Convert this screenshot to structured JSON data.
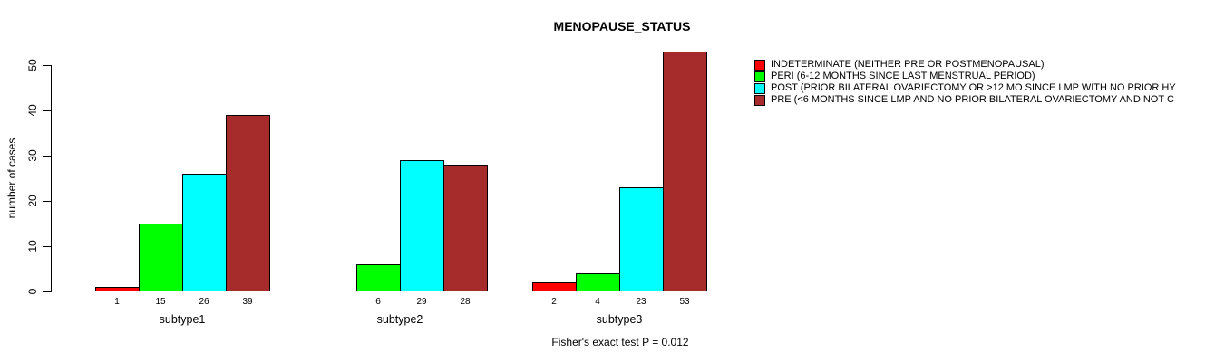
{
  "chart_data": {
    "type": "bar",
    "title": "MENOPAUSE_STATUS",
    "xlabel": "",
    "ylabel": "number of cases",
    "ylim": [
      0,
      50
    ],
    "yticks": [
      0,
      10,
      20,
      30,
      40,
      50
    ],
    "grid": false,
    "legend_position": "right",
    "categories": [
      "subtype1",
      "subtype2",
      "subtype3"
    ],
    "series": [
      {
        "name": "INDETERMINATE (NEITHER PRE OR POSTMENOPAUSAL)",
        "color": "#ff0000",
        "values": [
          1,
          0,
          2
        ]
      },
      {
        "name": "PERI (6-12 MONTHS SINCE LAST MENSTRUAL PERIOD)",
        "color": "#00ff00",
        "values": [
          15,
          6,
          4
        ]
      },
      {
        "name": "POST (PRIOR BILATERAL OVARIECTOMY OR >12 MO SINCE LMP WITH NO PRIOR HY",
        "color": "#00ffff",
        "values": [
          26,
          29,
          23
        ]
      },
      {
        "name": "PRE (<6 MONTHS SINCE LMP AND NO PRIOR BILATERAL OVARIECTOMY AND NOT C",
        "color": "#a62b2b",
        "values": [
          39,
          28,
          53
        ]
      }
    ],
    "bar_labels_by_group": [
      [
        "1",
        "15",
        "26",
        "39"
      ],
      [
        "",
        "6",
        "29",
        "28"
      ],
      [
        "2",
        "4",
        "23",
        "53"
      ]
    ],
    "annotation": "Fisher's exact test P = 0.012"
  }
}
